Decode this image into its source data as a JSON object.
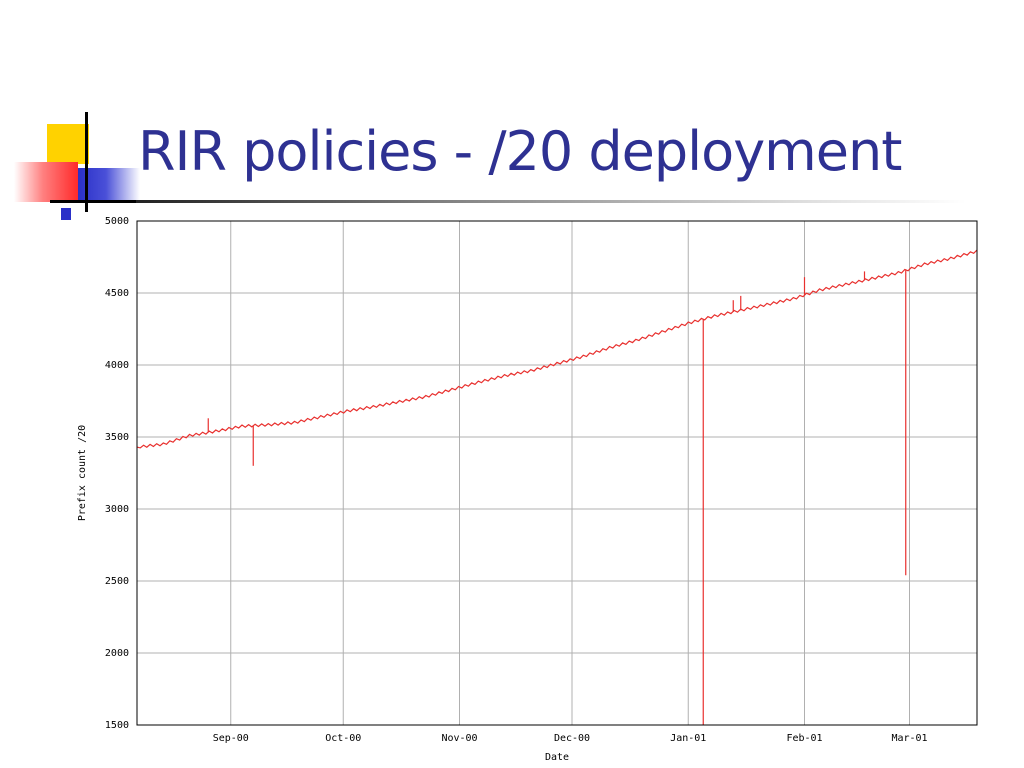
{
  "slide": {
    "title": "RIR policies - /20 deployment"
  },
  "colors": {
    "title": "#2e3192",
    "series": "#e8302e",
    "grid": "#b0b0b0",
    "accent_yellow": "#ffd200",
    "accent_red": "#ff2a2a",
    "accent_blue": "#2a30c8"
  },
  "chart_data": {
    "type": "line",
    "title": "",
    "xlabel": "Date",
    "ylabel": "Prefix count /20",
    "x_type": "date",
    "xlim": [
      "2000-08-07",
      "2001-03-19"
    ],
    "ylim": [
      1500,
      5000
    ],
    "yticks": [
      1500,
      2000,
      2500,
      3000,
      3500,
      4000,
      4500,
      5000
    ],
    "xticks": [
      {
        "date": "2000-09-01",
        "label": "Sep-00"
      },
      {
        "date": "2000-10-01",
        "label": "Oct-00"
      },
      {
        "date": "2000-11-01",
        "label": "Nov-00"
      },
      {
        "date": "2000-12-01",
        "label": "Dec-00"
      },
      {
        "date": "2001-01-01",
        "label": "Jan-01"
      },
      {
        "date": "2001-02-01",
        "label": "Feb-01"
      },
      {
        "date": "2001-03-01",
        "label": "Mar-01"
      }
    ],
    "grid": true,
    "legend": "none",
    "series": [
      {
        "points": [
          [
            "2000-08-07",
            3430
          ],
          [
            "2000-08-14",
            3450
          ],
          [
            "2000-08-21",
            3510
          ],
          [
            "2000-08-28",
            3540
          ],
          [
            "2000-09-04",
            3575
          ],
          [
            "2000-09-11",
            3585
          ],
          [
            "2000-09-18",
            3600
          ],
          [
            "2000-09-25",
            3640
          ],
          [
            "2000-10-02",
            3680
          ],
          [
            "2000-10-09",
            3710
          ],
          [
            "2000-10-16",
            3745
          ],
          [
            "2000-10-23",
            3780
          ],
          [
            "2000-10-30",
            3830
          ],
          [
            "2000-11-06",
            3880
          ],
          [
            "2000-11-13",
            3925
          ],
          [
            "2000-11-20",
            3960
          ],
          [
            "2000-11-27",
            4010
          ],
          [
            "2000-12-04",
            4060
          ],
          [
            "2000-12-11",
            4120
          ],
          [
            "2000-12-18",
            4170
          ],
          [
            "2000-12-25",
            4230
          ],
          [
            "2001-01-01",
            4290
          ],
          [
            "2001-01-08",
            4340
          ],
          [
            "2001-01-15",
            4380
          ],
          [
            "2001-01-22",
            4420
          ],
          [
            "2001-01-29",
            4460
          ],
          [
            "2001-02-05",
            4520
          ],
          [
            "2001-02-12",
            4560
          ],
          [
            "2001-02-19",
            4600
          ],
          [
            "2001-02-26",
            4640
          ],
          [
            "2001-03-05",
            4700
          ],
          [
            "2001-03-12",
            4740
          ],
          [
            "2001-03-19",
            4790
          ]
        ],
        "spikes": [
          {
            "date": "2000-08-26",
            "value": 3630
          },
          {
            "date": "2000-09-07",
            "value": 3300
          },
          {
            "date": "2001-01-05",
            "value": 1500
          },
          {
            "date": "2001-01-13",
            "value": 4450
          },
          {
            "date": "2001-01-15",
            "value": 4480
          },
          {
            "date": "2001-02-01",
            "value": 4610
          },
          {
            "date": "2001-02-17",
            "value": 4650
          },
          {
            "date": "2001-02-28",
            "value": 2540
          }
        ]
      }
    ]
  }
}
